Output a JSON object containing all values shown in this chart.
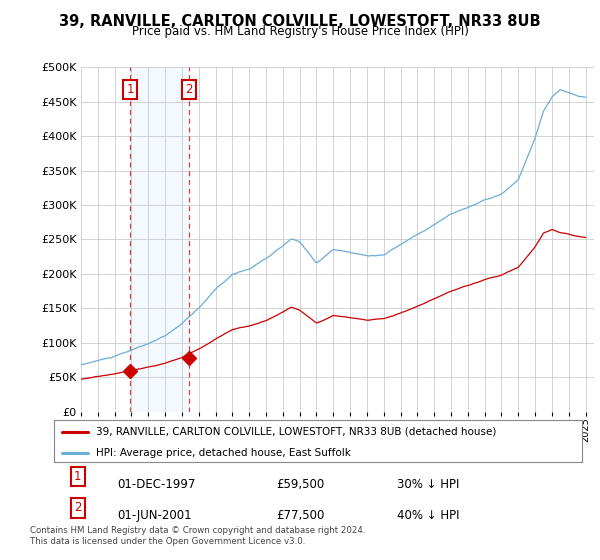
{
  "title": "39, RANVILLE, CARLTON COLVILLE, LOWESTOFT, NR33 8UB",
  "subtitle": "Price paid vs. HM Land Registry's House Price Index (HPI)",
  "sale1_date": "01-DEC-1997",
  "sale1_price": 59500,
  "sale1_label": "30% ↓ HPI",
  "sale2_date": "01-JUN-2001",
  "sale2_price": 77500,
  "sale2_label": "40% ↓ HPI",
  "legend_line1": "39, RANVILLE, CARLTON COLVILLE, LOWESTOFT, NR33 8UB (detached house)",
  "legend_line2": "HPI: Average price, detached house, East Suffolk",
  "footnote": "Contains HM Land Registry data © Crown copyright and database right 2024.\nThis data is licensed under the Open Government Licence v3.0.",
  "hpi_color": "#6baed6",
  "price_color": "#cc0000",
  "sale_marker_color": "#cc0000",
  "annotation_box_color": "#cc0000",
  "shaded_region_color": "#ddeeff",
  "ylim_min": 0,
  "ylim_max": 500000,
  "yticks": [
    0,
    50000,
    100000,
    150000,
    200000,
    250000,
    300000,
    350000,
    400000,
    450000,
    500000
  ],
  "xlim_min": 1995.0,
  "xlim_max": 2025.5,
  "background_color": "#ffffff"
}
